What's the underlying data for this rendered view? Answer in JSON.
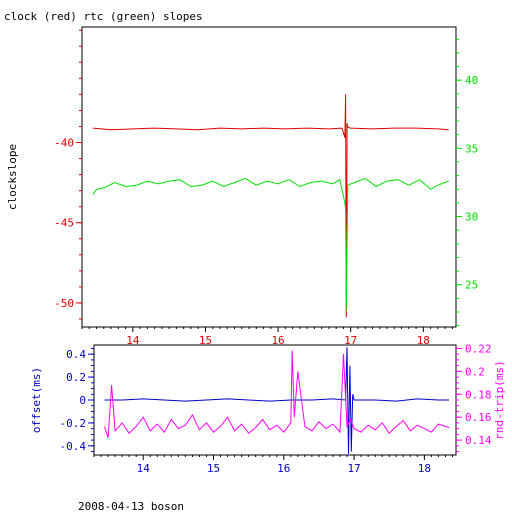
{
  "title": "clock (red) rtc (green) slopes",
  "footer": "2008-04-13 boson",
  "colors": {
    "red": "#e00000",
    "green": "#00e000",
    "blue": "#0000cc",
    "magenta": "#ff00ff",
    "axis": "#000000"
  },
  "chart_data": [
    {
      "type": "line",
      "ylabel": "clockslope",
      "y2label": "",
      "xlim": [
        13.3,
        18.45
      ],
      "ylim": [
        -51.5,
        -32.8
      ],
      "y2lim": [
        21.9,
        43.9
      ],
      "xticks": [
        14,
        15,
        16,
        17,
        18
      ],
      "yticks": [
        -40,
        -45,
        -50
      ],
      "y2ticks": [
        40,
        35,
        30,
        25
      ],
      "xtick_labels": [
        "14",
        "15",
        "16",
        "17",
        "18"
      ],
      "ytick_labels": [
        "-40",
        "-45",
        "-50"
      ],
      "y2tick_labels": [
        "40",
        "35",
        "30",
        "25"
      ],
      "series": [
        {
          "name": "clock",
          "axis": "left",
          "color": "#e00000",
          "x": [
            13.45,
            13.7,
            14.0,
            14.3,
            14.6,
            14.9,
            15.2,
            15.5,
            15.8,
            16.1,
            16.4,
            16.7,
            16.88,
            16.92,
            16.93,
            16.94,
            16.95,
            16.96,
            17.0,
            17.3,
            17.6,
            17.9,
            18.2,
            18.35
          ],
          "y": [
            -39.1,
            -39.2,
            -39.15,
            -39.1,
            -39.15,
            -39.2,
            -39.1,
            -39.15,
            -39.1,
            -39.15,
            -39.1,
            -39.15,
            -39.1,
            -39.7,
            -37.0,
            -50.9,
            -38.8,
            -39.05,
            -39.1,
            -39.15,
            -39.1,
            -39.1,
            -39.15,
            -39.2
          ]
        },
        {
          "name": "rtc",
          "axis": "right",
          "color": "#00e000",
          "x": [
            13.45,
            13.5,
            13.6,
            13.75,
            13.9,
            14.05,
            14.2,
            14.35,
            14.5,
            14.65,
            14.8,
            14.95,
            15.1,
            15.25,
            15.4,
            15.55,
            15.7,
            15.85,
            16.0,
            16.15,
            16.3,
            16.45,
            16.6,
            16.75,
            16.85,
            16.92,
            16.93,
            16.94,
            16.96,
            17.05,
            17.2,
            17.35,
            17.5,
            17.65,
            17.8,
            17.95,
            18.1,
            18.2,
            18.35
          ],
          "y": [
            31.6,
            32.0,
            32.1,
            32.5,
            32.2,
            32.3,
            32.6,
            32.4,
            32.6,
            32.7,
            32.2,
            32.3,
            32.6,
            32.2,
            32.5,
            32.8,
            32.3,
            32.6,
            32.4,
            32.7,
            32.2,
            32.5,
            32.6,
            32.4,
            32.7,
            31.0,
            30.5,
            23.1,
            32.3,
            32.5,
            32.8,
            32.2,
            32.6,
            32.7,
            32.3,
            32.7,
            32.0,
            32.3,
            32.6
          ]
        }
      ]
    },
    {
      "type": "line",
      "ylabel": "offset(ms)",
      "y2label": "rnd-trip(ms)",
      "xlim": [
        13.3,
        18.45
      ],
      "ylim": [
        -0.48,
        0.48
      ],
      "y2lim": [
        0.127,
        0.223
      ],
      "xticks": [
        14,
        15,
        16,
        17,
        18
      ],
      "yticks": [
        0.4,
        0.2,
        0,
        -0.2,
        -0.4
      ],
      "y2ticks": [
        0.22,
        0.2,
        0.18,
        0.16,
        0.14
      ],
      "xtick_labels": [
        "14",
        "15",
        "16",
        "17",
        "18"
      ],
      "ytick_labels": [
        "0.4",
        "0.2",
        "0",
        "-0.2",
        "-0.4"
      ],
      "y2tick_labels": [
        "0.22",
        "0.2",
        "0.18",
        "0.16",
        "0.14"
      ],
      "series": [
        {
          "name": "offset",
          "axis": "left",
          "color": "#0000cc",
          "x": [
            13.45,
            13.7,
            14.0,
            14.3,
            14.6,
            14.9,
            15.2,
            15.5,
            15.8,
            16.1,
            16.4,
            16.7,
            16.88,
            16.9,
            16.92,
            16.94,
            16.96,
            16.98,
            17.0,
            17.3,
            17.6,
            17.9,
            18.2,
            18.35
          ],
          "y": [
            0.0,
            0.0,
            0.01,
            0.0,
            -0.01,
            0.0,
            0.01,
            0.0,
            -0.01,
            0.0,
            0.0,
            0.01,
            0.0,
            0.46,
            -0.47,
            0.3,
            -0.45,
            0.05,
            0.0,
            0.0,
            -0.01,
            0.01,
            0.0,
            0.0
          ]
        },
        {
          "name": "rnd-trip",
          "axis": "right",
          "color": "#ff00ff",
          "x": [
            13.45,
            13.5,
            13.55,
            13.6,
            13.7,
            13.8,
            13.9,
            14.0,
            14.1,
            14.2,
            14.3,
            14.4,
            14.5,
            14.6,
            14.7,
            14.8,
            14.9,
            15.0,
            15.1,
            15.2,
            15.3,
            15.4,
            15.5,
            15.6,
            15.7,
            15.8,
            15.9,
            16.0,
            16.1,
            16.12,
            16.15,
            16.2,
            16.3,
            16.4,
            16.5,
            16.6,
            16.7,
            16.8,
            16.85,
            16.9,
            16.95,
            17.0,
            17.1,
            17.2,
            17.3,
            17.4,
            17.5,
            17.6,
            17.7,
            17.8,
            17.9,
            18.0,
            18.1,
            18.2,
            18.35
          ],
          "y": [
            0.152,
            0.142,
            0.188,
            0.148,
            0.155,
            0.146,
            0.152,
            0.16,
            0.148,
            0.154,
            0.147,
            0.158,
            0.15,
            0.153,
            0.162,
            0.149,
            0.155,
            0.147,
            0.152,
            0.16,
            0.148,
            0.154,
            0.146,
            0.151,
            0.158,
            0.149,
            0.153,
            0.147,
            0.155,
            0.218,
            0.16,
            0.2,
            0.152,
            0.148,
            0.156,
            0.15,
            0.154,
            0.147,
            0.215,
            0.152,
            0.158,
            0.15,
            0.147,
            0.153,
            0.149,
            0.155,
            0.146,
            0.152,
            0.157,
            0.148,
            0.153,
            0.15,
            0.147,
            0.154,
            0.151
          ]
        }
      ]
    }
  ]
}
